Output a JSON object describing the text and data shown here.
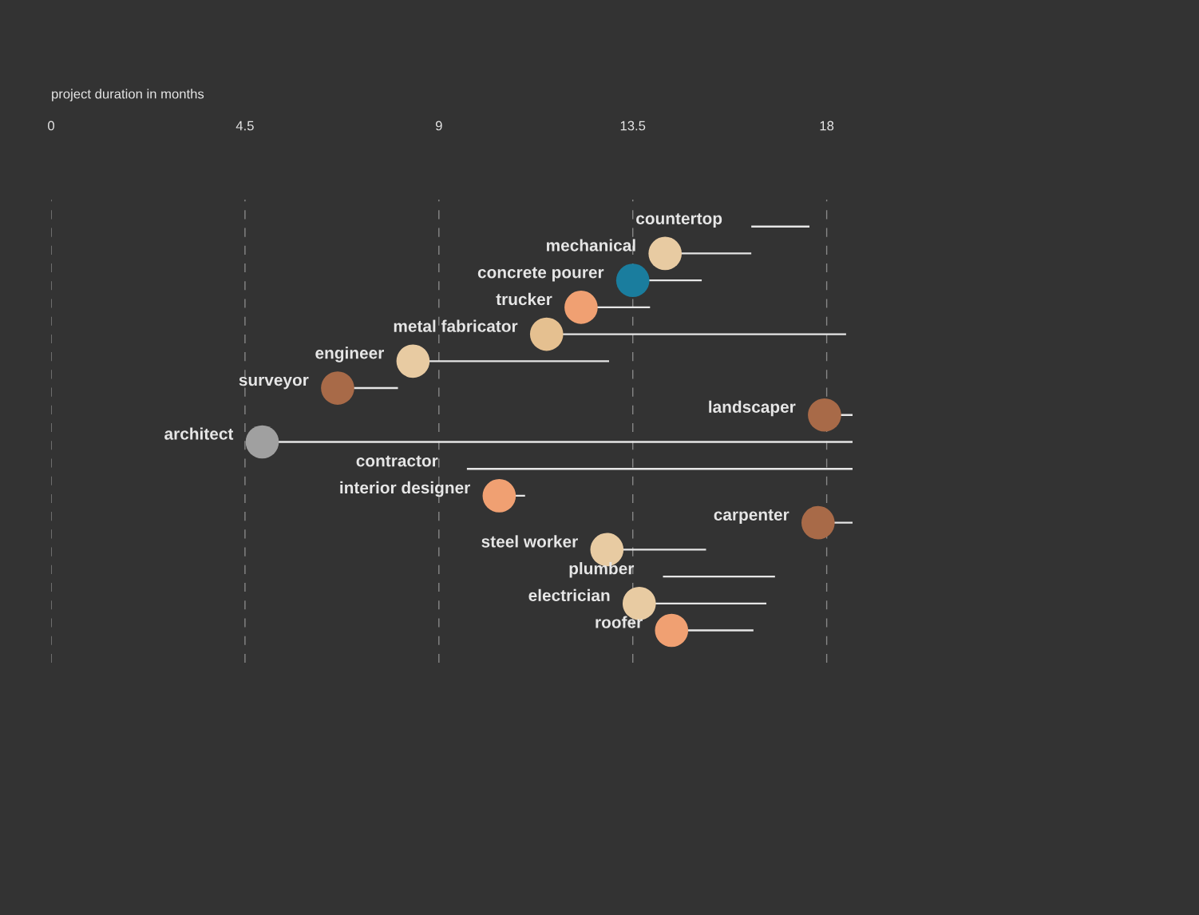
{
  "chart_data": {
    "type": "bar",
    "orientation": "horizontal",
    "xlabel": "project duration in months",
    "categories": [
      "countertop",
      "mechanical",
      "concrete pourer",
      "trucker",
      "metal fabricator",
      "engineer",
      "surveyor",
      "landscaper",
      "architect",
      "contractor",
      "interior designer",
      "carpenter",
      "steel worker",
      "plumber",
      "electrician",
      "roofer"
    ],
    "series": [
      {
        "color": "#e6e6e6",
        "base": [
          16.25,
          14.25,
          13.5,
          12.3,
          11.5,
          8.4,
          6.65,
          17.95,
          4.9,
          9.65,
          10.4,
          17.8,
          12.9,
          14.2,
          13.65,
          14.4
        ],
        "values": [
          1.35,
          2.0,
          1.6,
          1.6,
          6.95,
          4.55,
          1.4,
          0.65,
          13.7,
          8.95,
          0.6,
          0.8,
          2.3,
          2.6,
          2.95,
          1.9
        ]
      },
      {
        "type": "scatter",
        "values": [
          null,
          14.25,
          13.5,
          12.3,
          11.5,
          8.4,
          6.65,
          17.95,
          4.9,
          null,
          10.4,
          17.8,
          12.9,
          null,
          13.65,
          14.4
        ],
        "colors": [
          null,
          "#e8cba2",
          "#1a7d9e",
          "#f0a072",
          "#e5c090",
          "#e8cba2",
          "#a86a48",
          "#a86a48",
          "#a0a0a0",
          null,
          "#f0a072",
          "#a86a48",
          "#e8cba2",
          null,
          "#e8cba2",
          "#f0a072"
        ]
      }
    ],
    "xlim": [
      0,
      18.6
    ],
    "xticks": [
      0,
      4.5,
      9,
      13.5,
      18
    ],
    "grid": "x",
    "marker": "circle",
    "tick_labels": "x"
  }
}
